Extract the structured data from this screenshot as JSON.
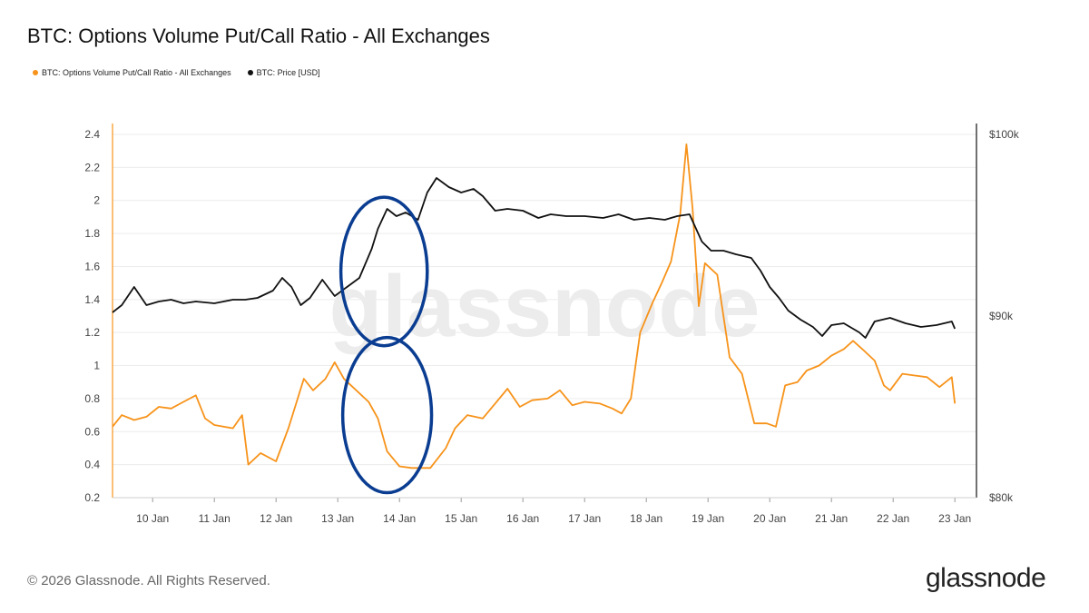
{
  "title": "BTC: Options Volume Put/Call Ratio - All Exchanges",
  "footer": {
    "copyright": "© 2026 Glassnode. All Rights Reserved.",
    "logo": "glassnode"
  },
  "watermark": "glassnode",
  "colors": {
    "ratio": "#f7931a",
    "price": "#111111",
    "circle": "#0a3d91",
    "grid": "#ececec"
  },
  "chart_data": {
    "type": "line",
    "title": "BTC: Options Volume Put/Call Ratio - All Exchanges",
    "x_ticks": [
      "10 Jan",
      "11 Jan",
      "12 Jan",
      "13 Jan",
      "14 Jan",
      "15 Jan",
      "16 Jan",
      "17 Jan",
      "18 Jan",
      "19 Jan",
      "20 Jan",
      "21 Jan",
      "22 Jan",
      "23 Jan"
    ],
    "x_range_days": [
      9.35,
      23.35
    ],
    "left_axis": {
      "ticks": [
        "0.2",
        "0.4",
        "0.6",
        "0.8",
        "1",
        "1.2",
        "1.4",
        "1.6",
        "1.8",
        "2",
        "2.2",
        "2.4"
      ],
      "range": [
        0.2,
        2.4
      ]
    },
    "right_axis": {
      "ticks": [
        "$80k",
        "$90k",
        "$100k"
      ],
      "range": [
        80000,
        100000
      ]
    },
    "legend_position": "top-left",
    "grid": true,
    "series": [
      {
        "name": "BTC: Options Volume Put/Call Ratio - All Exchanges",
        "axis": "left",
        "color": "#f7931a",
        "points": [
          [
            9.35,
            0.63
          ],
          [
            9.5,
            0.7
          ],
          [
            9.7,
            0.67
          ],
          [
            9.9,
            0.69
          ],
          [
            10.1,
            0.75
          ],
          [
            10.3,
            0.74
          ],
          [
            10.5,
            0.78
          ],
          [
            10.7,
            0.82
          ],
          [
            10.85,
            0.68
          ],
          [
            11.0,
            0.64
          ],
          [
            11.3,
            0.62
          ],
          [
            11.45,
            0.7
          ],
          [
            11.55,
            0.4
          ],
          [
            11.75,
            0.47
          ],
          [
            12.0,
            0.42
          ],
          [
            12.2,
            0.62
          ],
          [
            12.45,
            0.92
          ],
          [
            12.6,
            0.85
          ],
          [
            12.8,
            0.92
          ],
          [
            12.95,
            1.02
          ],
          [
            13.1,
            0.92
          ],
          [
            13.3,
            0.85
          ],
          [
            13.5,
            0.78
          ],
          [
            13.65,
            0.68
          ],
          [
            13.8,
            0.48
          ],
          [
            14.0,
            0.39
          ],
          [
            14.2,
            0.38
          ],
          [
            14.5,
            0.38
          ],
          [
            14.75,
            0.5
          ],
          [
            14.9,
            0.62
          ],
          [
            15.1,
            0.7
          ],
          [
            15.35,
            0.68
          ],
          [
            15.55,
            0.77
          ],
          [
            15.75,
            0.86
          ],
          [
            15.95,
            0.75
          ],
          [
            16.15,
            0.79
          ],
          [
            16.4,
            0.8
          ],
          [
            16.6,
            0.85
          ],
          [
            16.8,
            0.76
          ],
          [
            17.0,
            0.78
          ],
          [
            17.25,
            0.77
          ],
          [
            17.45,
            0.74
          ],
          [
            17.6,
            0.71
          ],
          [
            17.75,
            0.8
          ],
          [
            17.9,
            1.2
          ],
          [
            18.1,
            1.38
          ],
          [
            18.25,
            1.5
          ],
          [
            18.4,
            1.63
          ],
          [
            18.55,
            1.92
          ],
          [
            18.65,
            2.34
          ],
          [
            18.75,
            1.95
          ],
          [
            18.85,
            1.36
          ],
          [
            18.95,
            1.62
          ],
          [
            19.15,
            1.55
          ],
          [
            19.35,
            1.05
          ],
          [
            19.55,
            0.95
          ],
          [
            19.75,
            0.65
          ],
          [
            19.95,
            0.65
          ],
          [
            20.1,
            0.63
          ],
          [
            20.25,
            0.88
          ],
          [
            20.45,
            0.9
          ],
          [
            20.6,
            0.97
          ],
          [
            20.8,
            1.0
          ],
          [
            21.0,
            1.06
          ],
          [
            21.2,
            1.1
          ],
          [
            21.35,
            1.15
          ],
          [
            21.5,
            1.1
          ],
          [
            21.7,
            1.03
          ],
          [
            21.85,
            0.88
          ],
          [
            21.95,
            0.85
          ],
          [
            22.15,
            0.95
          ],
          [
            22.35,
            0.94
          ],
          [
            22.55,
            0.93
          ],
          [
            22.75,
            0.87
          ],
          [
            22.95,
            0.93
          ],
          [
            23.0,
            0.77
          ]
        ]
      },
      {
        "name": "BTC: Price [USD]",
        "axis": "right",
        "color": "#111111",
        "points": [
          [
            9.35,
            90200
          ],
          [
            9.5,
            90600
          ],
          [
            9.7,
            91600
          ],
          [
            9.9,
            90600
          ],
          [
            10.1,
            90800
          ],
          [
            10.3,
            90900
          ],
          [
            10.5,
            90700
          ],
          [
            10.7,
            90800
          ],
          [
            11.0,
            90700
          ],
          [
            11.3,
            90900
          ],
          [
            11.5,
            90900
          ],
          [
            11.7,
            91000
          ],
          [
            11.95,
            91400
          ],
          [
            12.1,
            92100
          ],
          [
            12.25,
            91600
          ],
          [
            12.4,
            90600
          ],
          [
            12.55,
            91000
          ],
          [
            12.75,
            92000
          ],
          [
            12.95,
            91100
          ],
          [
            13.15,
            91600
          ],
          [
            13.35,
            92100
          ],
          [
            13.55,
            93700
          ],
          [
            13.65,
            94800
          ],
          [
            13.8,
            95900
          ],
          [
            13.95,
            95500
          ],
          [
            14.1,
            95700
          ],
          [
            14.3,
            95300
          ],
          [
            14.45,
            96800
          ],
          [
            14.6,
            97600
          ],
          [
            14.8,
            97100
          ],
          [
            15.0,
            96800
          ],
          [
            15.2,
            97000
          ],
          [
            15.35,
            96600
          ],
          [
            15.55,
            95800
          ],
          [
            15.75,
            95900
          ],
          [
            16.0,
            95800
          ],
          [
            16.25,
            95400
          ],
          [
            16.45,
            95600
          ],
          [
            16.7,
            95500
          ],
          [
            17.0,
            95500
          ],
          [
            17.3,
            95400
          ],
          [
            17.55,
            95600
          ],
          [
            17.8,
            95300
          ],
          [
            18.05,
            95400
          ],
          [
            18.3,
            95300
          ],
          [
            18.5,
            95500
          ],
          [
            18.7,
            95600
          ],
          [
            18.9,
            94100
          ],
          [
            19.05,
            93600
          ],
          [
            19.25,
            93600
          ],
          [
            19.45,
            93400
          ],
          [
            19.7,
            93200
          ],
          [
            19.85,
            92500
          ],
          [
            20.0,
            91600
          ],
          [
            20.15,
            91000
          ],
          [
            20.3,
            90300
          ],
          [
            20.5,
            89800
          ],
          [
            20.7,
            89400
          ],
          [
            20.85,
            88900
          ],
          [
            21.0,
            89500
          ],
          [
            21.2,
            89600
          ],
          [
            21.45,
            89100
          ],
          [
            21.55,
            88800
          ],
          [
            21.7,
            89700
          ],
          [
            21.95,
            89900
          ],
          [
            22.2,
            89600
          ],
          [
            22.45,
            89400
          ],
          [
            22.7,
            89500
          ],
          [
            22.95,
            89700
          ],
          [
            23.0,
            89300
          ]
        ]
      }
    ],
    "annotations": [
      {
        "type": "ellipse",
        "x_center": 13.75,
        "ratio_center": 1.57,
        "x_radius": 0.7,
        "ratio_radius": 0.45,
        "color": "#0a3d91"
      },
      {
        "type": "ellipse",
        "x_center": 13.8,
        "ratio_center": 0.7,
        "x_radius": 0.72,
        "ratio_radius": 0.47,
        "color": "#0a3d91"
      }
    ]
  }
}
